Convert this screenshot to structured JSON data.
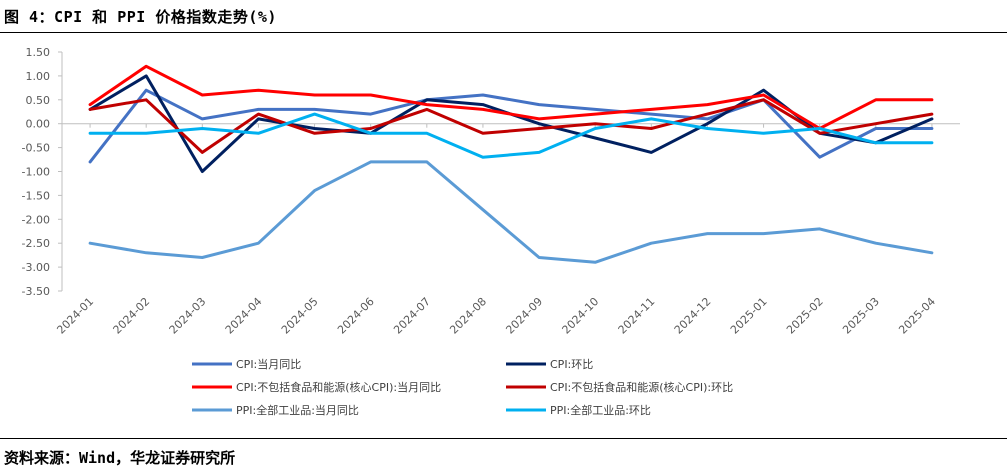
{
  "figure": {
    "title": "图 4：CPI 和 PPI 价格指数走势(%)",
    "source": "资料来源：Wind，华龙证券研究所"
  },
  "chart_data": {
    "type": "line",
    "title": "CPI 和 PPI 价格指数走势(%)",
    "xlabel": "",
    "ylabel": "",
    "ylim": [
      -3.5,
      1.5
    ],
    "ytick_step": 0.5,
    "grid": false,
    "legend_position": "bottom",
    "categories": [
      "2024-01",
      "2024-02",
      "2024-03",
      "2024-04",
      "2024-05",
      "2024-06",
      "2024-07",
      "2024-08",
      "2024-09",
      "2024-10",
      "2024-11",
      "2024-12",
      "2025-01",
      "2025-02",
      "2025-03",
      "2025-04"
    ],
    "yticks": [
      "1.50",
      "1.00",
      "0.50",
      "0.00",
      "-0.50",
      "-1.00",
      "-1.50",
      "-2.00",
      "-2.50",
      "-3.00",
      "-3.50"
    ],
    "series": [
      {
        "name": "CPI:当月同比",
        "color": "#4472C4",
        "values": [
          -0.8,
          0.7,
          0.1,
          0.3,
          0.3,
          0.2,
          0.5,
          0.6,
          0.4,
          0.3,
          0.2,
          0.1,
          0.5,
          -0.7,
          -0.1,
          -0.1
        ]
      },
      {
        "name": "CPI:环比",
        "color": "#002060",
        "values": [
          0.3,
          1.0,
          -1.0,
          0.1,
          -0.1,
          -0.2,
          0.5,
          0.4,
          0.0,
          -0.3,
          -0.6,
          0.0,
          0.7,
          -0.2,
          -0.4,
          0.1
        ]
      },
      {
        "name": "CPI:不包括食品和能源(核心CPI):当月同比",
        "color": "#FF0000",
        "values": [
          0.4,
          1.2,
          0.6,
          0.7,
          0.6,
          0.6,
          0.4,
          0.3,
          0.1,
          0.2,
          0.3,
          0.4,
          0.6,
          -0.1,
          0.5,
          0.5
        ]
      },
      {
        "name": "CPI:不包括食品和能源(核心CPI):环比",
        "color": "#C00000",
        "values": [
          0.3,
          0.5,
          -0.6,
          0.2,
          -0.2,
          -0.1,
          0.3,
          -0.2,
          -0.1,
          0.0,
          -0.1,
          0.2,
          0.5,
          -0.2,
          0.0,
          0.2
        ]
      },
      {
        "name": "PPI:全部工业品:当月同比",
        "color": "#5B9BD5",
        "values": [
          -2.5,
          -2.7,
          -2.8,
          -2.5,
          -1.4,
          -0.8,
          -0.8,
          -1.8,
          -2.8,
          -2.9,
          -2.5,
          -2.3,
          -2.3,
          -2.2,
          -2.5,
          -2.7
        ]
      },
      {
        "name": "PPI:全部工业品:环比",
        "color": "#00B0F0",
        "values": [
          -0.2,
          -0.2,
          -0.1,
          -0.2,
          0.2,
          -0.2,
          -0.2,
          -0.7,
          -0.6,
          -0.1,
          0.1,
          -0.1,
          -0.2,
          -0.1,
          -0.4,
          -0.4
        ]
      }
    ]
  }
}
